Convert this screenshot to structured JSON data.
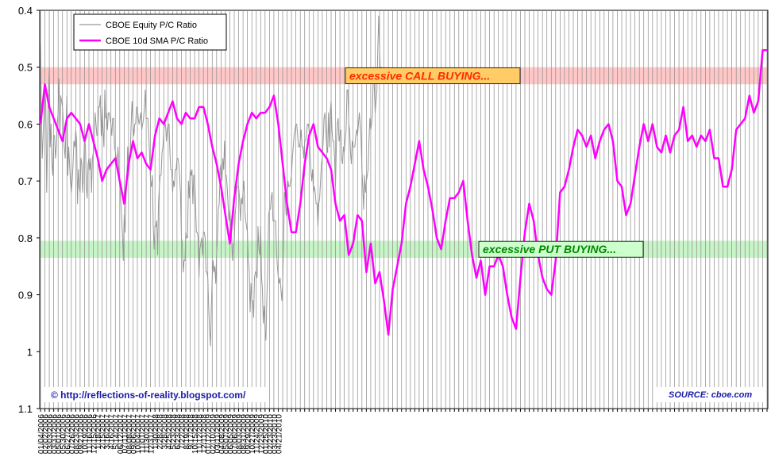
{
  "chart_data": {
    "type": "line",
    "title": "",
    "xlabel": "",
    "ylabel": "",
    "ylim": [
      0.4,
      1.1
    ],
    "y_axis_inverted": true,
    "y_ticks": [
      "0.4",
      "0.5",
      "0.6",
      "0.7",
      "0.8",
      "0.9",
      "1",
      "1.1"
    ],
    "x_tick_labels": [
      "01/04/2006",
      "02/02/2006",
      "03/03/2006",
      "03/31/2006",
      "05/01/2006",
      "05/30/2006",
      "06/27/2006",
      "07/26/2006",
      "08/23/2006",
      "09/21/2006",
      "10/19/2006",
      "11/16/2006",
      "12/15/2006",
      "1/18/2007",
      "2/15/2007",
      "3/16/2007",
      "4/16/2007",
      "5/14/2007",
      "06/12/2007",
      "07/11/2007",
      "08/08/2007",
      "09/06/2007",
      "10/04/2007",
      "11/01/2007",
      "11/30/2007",
      "12/31/2007",
      "1/30/2008",
      "2/28/2008",
      "3/28/2008",
      "4/25/2008",
      "5/23/2008",
      "6/23/2008",
      "7/22/2008",
      "8/19/2008",
      "9/17/2008",
      "10/15/2008",
      "11/12/2008",
      "12/11/2008",
      "01/12/2009",
      "02/10/2009",
      "03/11/2009",
      "04/08/2009",
      "05/07/2009",
      "06/05/2009",
      "07/06/2009",
      "08/03/2009",
      "08/31/2009",
      "09/29/2009",
      "10/27/2009",
      "11/24/2009",
      "12/23/2009",
      "01/25/2010",
      "02/23/2010",
      "03/23/2010",
      "04/21/2010"
    ],
    "grid": true,
    "legend_position": "top-left",
    "bands": [
      {
        "label": "excessive CALL BUYING...",
        "y_range": [
          0.5,
          0.53
        ],
        "fill": "#ffc8c8",
        "label_color": "#ff2a00",
        "label_bg": "#ffcc66"
      },
      {
        "label": "excessive PUT BUYING...",
        "y_range": [
          0.805,
          0.835
        ],
        "fill": "#c8f5c8",
        "label_color": "#008800",
        "label_bg": "#ccffcc"
      }
    ],
    "series": [
      {
        "name": "CBOE Equity P/C Ratio",
        "color": "#969696",
        "x_start": 0,
        "x_step": 0.2,
        "values": [
          0.46,
          0.58,
          0.66,
          0.62,
          0.58,
          0.53,
          0.57,
          0.72,
          0.62,
          0.55,
          0.5,
          0.64,
          0.6,
          0.67,
          0.69,
          0.62,
          0.62,
          0.66,
          0.64,
          0.6,
          0.58,
          0.52,
          0.62,
          0.55,
          0.56,
          0.57,
          0.6,
          0.64,
          0.66,
          0.6,
          0.55,
          0.69,
          0.64,
          0.67,
          0.7,
          0.72,
          0.7,
          0.67,
          0.63,
          0.64,
          0.61,
          0.63,
          0.74,
          0.68,
          0.71,
          0.72,
          0.66,
          0.67,
          0.72,
          0.68,
          0.62,
          0.64,
          0.71,
          0.73,
          0.67,
          0.66,
          0.68,
          0.66,
          0.72,
          0.66,
          0.65,
          0.63,
          0.58,
          0.6,
          0.62,
          0.62,
          0.57,
          0.57,
          0.55,
          0.62,
          0.57,
          0.61,
          0.64,
          0.54,
          0.59,
          0.58,
          0.61,
          0.58,
          0.58,
          0.59,
          0.6,
          0.62,
          0.59,
          0.59,
          0.64,
          0.65,
          0.66,
          0.67,
          0.64,
          0.68,
          0.71,
          0.73,
          0.76,
          0.79,
          0.84,
          0.76,
          0.79,
          0.73,
          0.7,
          0.64,
          0.69,
          0.67,
          0.65,
          0.6,
          0.56,
          0.6,
          0.62,
          0.6,
          0.6,
          0.57,
          0.57,
          0.59,
          0.6,
          0.59,
          0.58,
          0.61,
          0.6,
          0.59,
          0.57,
          0.54,
          0.59,
          0.59,
          0.59,
          0.62,
          0.66,
          0.7,
          0.71,
          0.69,
          0.78,
          0.82,
          0.78,
          0.78,
          0.77,
          0.83,
          0.74,
          0.71,
          0.69,
          0.69,
          0.65,
          0.64,
          0.61,
          0.6,
          0.6,
          0.63,
          0.61,
          0.6,
          0.6,
          0.65,
          0.68,
          0.68,
          0.72,
          0.7,
          0.71,
          0.68,
          0.68,
          0.66,
          0.66,
          0.67,
          0.69,
          0.72,
          0.8,
          0.81,
          0.86,
          0.84,
          0.84,
          0.79,
          0.8,
          0.8,
          0.7,
          0.73,
          0.68,
          0.69,
          0.68,
          0.74,
          0.69,
          0.69,
          0.74,
          0.79,
          0.79,
          0.8,
          0.87,
          0.82,
          0.81,
          0.8,
          0.83,
          0.79,
          0.79,
          0.8,
          0.86,
          0.86,
          0.87,
          0.92,
          0.96,
          0.99,
          0.92,
          0.87,
          0.84,
          0.86,
          0.85,
          0.88,
          0.83,
          0.8,
          0.75,
          0.74,
          0.68,
          0.67,
          0.7,
          0.66,
          0.68,
          0.63,
          0.69,
          0.69,
          0.71,
          0.74,
          0.77,
          0.75,
          0.78,
          0.8,
          0.84,
          0.81,
          0.81,
          0.76,
          0.74,
          0.71,
          0.71,
          0.71,
          0.73,
          0.77,
          0.73,
          0.74,
          0.72,
          0.7,
          0.75,
          0.77,
          0.78,
          0.79,
          0.84,
          0.86,
          0.93,
          0.88,
          0.91,
          0.91,
          0.94,
          0.87,
          0.86,
          0.86,
          0.87,
          0.78,
          0.82,
          0.83,
          0.78,
          0.87,
          0.89,
          0.95,
          0.92,
          0.96,
          0.98,
          0.91,
          0.86,
          0.76,
          0.75,
          0.75,
          0.73,
          0.72,
          0.77,
          0.77,
          0.77,
          0.77,
          0.82,
          0.85,
          0.87,
          0.88,
          0.87,
          0.89,
          0.91,
          0.88,
          0.81,
          0.72,
          0.73,
          0.76,
          0.74,
          0.7,
          0.71,
          0.71,
          0.7,
          0.69,
          0.66,
          0.64,
          0.62,
          0.61,
          0.6,
          0.6,
          0.62,
          0.64,
          0.64,
          0.63,
          0.61,
          0.64,
          0.64,
          0.66,
          0.63,
          0.63,
          0.62,
          0.6,
          0.6,
          0.61,
          0.65,
          0.68,
          0.7,
          0.68,
          0.72,
          0.71,
          0.72,
          0.74,
          0.74,
          0.78,
          0.74,
          0.73,
          0.7,
          0.67,
          0.66,
          0.63,
          0.59,
          0.58,
          0.61,
          0.64,
          0.65,
          0.58,
          0.64,
          0.58,
          0.56,
          0.61,
          0.63,
          0.63,
          0.66,
          0.71,
          0.63,
          0.6,
          0.59,
          0.63,
          0.62,
          0.61,
          0.66,
          0.67,
          0.64,
          0.65,
          0.63,
          0.61,
          0.54,
          0.54,
          0.6,
          0.61,
          0.65,
          0.67,
          0.63,
          0.64,
          0.64,
          0.64,
          0.62,
          0.61,
          0.62,
          0.6,
          0.58,
          0.6,
          0.62,
          0.68,
          0.71,
          0.75,
          0.69,
          0.72,
          0.7,
          0.69,
          0.68,
          0.63,
          0.59,
          0.61,
          0.6,
          0.58,
          0.5,
          0.53,
          0.58,
          0.56,
          0.54,
          0.47,
          0.41,
          0.47,
          0.51,
          0.5,
          0.51
        ]
      },
      {
        "name": "CBOE 10d SMA P/C Ratio",
        "color": "#ff00ff",
        "x_start": 0,
        "x_step": 1,
        "values": [
          0.6,
          0.53,
          0.57,
          0.59,
          0.61,
          0.63,
          0.59,
          0.58,
          0.59,
          0.6,
          0.63,
          0.6,
          0.63,
          0.66,
          0.7,
          0.68,
          0.67,
          0.66,
          0.7,
          0.74,
          0.67,
          0.63,
          0.66,
          0.65,
          0.67,
          0.68,
          0.62,
          0.59,
          0.6,
          0.58,
          0.56,
          0.59,
          0.6,
          0.58,
          0.59,
          0.59,
          0.57,
          0.57,
          0.6,
          0.64,
          0.67,
          0.71,
          0.76,
          0.81,
          0.73,
          0.67,
          0.63,
          0.6,
          0.58,
          0.59,
          0.58,
          0.58,
          0.57,
          0.55,
          0.6,
          0.67,
          0.74,
          0.79,
          0.79,
          0.74,
          0.67,
          0.62,
          0.6,
          0.64,
          0.65,
          0.66,
          0.68,
          0.74,
          0.77,
          0.76,
          0.83,
          0.81,
          0.76,
          0.77,
          0.86,
          0.81,
          0.88,
          0.86,
          0.91,
          0.97,
          0.89,
          0.85,
          0.81,
          0.74,
          0.71,
          0.67,
          0.63,
          0.68,
          0.71,
          0.75,
          0.8,
          0.82,
          0.77,
          0.73,
          0.73,
          0.72,
          0.7,
          0.77,
          0.83,
          0.87,
          0.84,
          0.9,
          0.85,
          0.85,
          0.83,
          0.85,
          0.9,
          0.94,
          0.96,
          0.87,
          0.79,
          0.74,
          0.77,
          0.83,
          0.87,
          0.89,
          0.9,
          0.84,
          0.72,
          0.71,
          0.68,
          0.64,
          0.61,
          0.62,
          0.64,
          0.62,
          0.66,
          0.63,
          0.61,
          0.6,
          0.63,
          0.7,
          0.71,
          0.76,
          0.74,
          0.69,
          0.64,
          0.6,
          0.63,
          0.6,
          0.64,
          0.65,
          0.62,
          0.65,
          0.62,
          0.61,
          0.57,
          0.63,
          0.62,
          0.64,
          0.62,
          0.63,
          0.61,
          0.66,
          0.66,
          0.71,
          0.71,
          0.68,
          0.61,
          0.6,
          0.59,
          0.55,
          0.58,
          0.56,
          0.47,
          0.47
        ]
      }
    ]
  },
  "credit": "© http://reflections-of-reality.blogspot.com/",
  "source": "SOURCE: cboe.com"
}
